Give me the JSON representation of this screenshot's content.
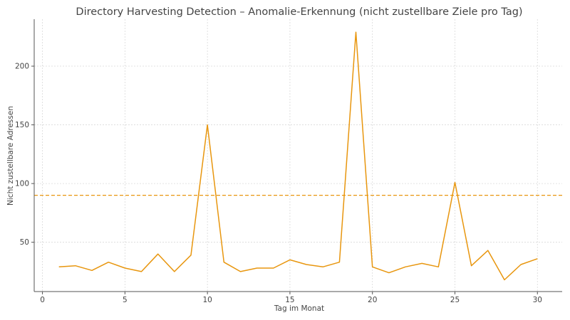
{
  "chart_data": {
    "type": "line",
    "title": "Directory Harvesting Detection – Anomalie-Erkennung (nicht zustellbare Ziele pro Tag)",
    "xlabel": "Tag im Monat",
    "ylabel": "Nicht zustellbare Adressen",
    "xlim": [
      -0.5,
      31.5
    ],
    "ylim": [
      8,
      240
    ],
    "xticks": [
      0,
      5,
      10,
      15,
      20,
      25,
      30
    ],
    "yticks": [
      50,
      100,
      150,
      200
    ],
    "grid": true,
    "x": [
      1,
      2,
      3,
      4,
      5,
      6,
      7,
      8,
      9,
      10,
      11,
      12,
      13,
      14,
      15,
      16,
      17,
      18,
      19,
      20,
      21,
      22,
      23,
      24,
      25,
      26,
      27,
      28,
      29,
      30
    ],
    "series": [
      {
        "values": [
          29,
          30,
          26,
          33,
          28,
          25,
          40,
          25,
          39,
          150,
          33,
          25,
          28,
          28,
          35,
          31,
          29,
          33,
          229,
          29,
          24,
          29,
          32,
          29,
          101,
          30,
          43,
          18,
          31,
          36
        ],
        "color": "#e8960e"
      }
    ],
    "threshold": {
      "y": 90,
      "color": "#e8960e",
      "style": "dashed"
    }
  }
}
